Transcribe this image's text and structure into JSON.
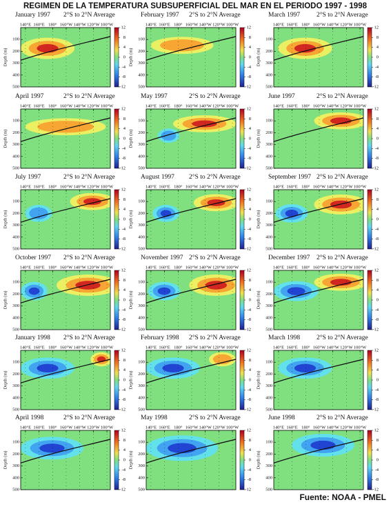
{
  "title": "REGIMEN DE LA TEMPERATURA SUBSUPERFICIAL DEL MAR EN EL PERIODO 1997 - 1998",
  "source": "Fuente: NOAA - PMEL",
  "subtitle": "2°S to 2°N Average",
  "y_label": "Depth (m)",
  "xlim": [
    133,
    265
  ],
  "xticks": [
    {
      "value": 140,
      "label": "140°E"
    },
    {
      "value": 160,
      "label": "160°E"
    },
    {
      "value": 180,
      "label": "180°"
    },
    {
      "value": 200,
      "label": "160°W"
    },
    {
      "value": 220,
      "label": "140°W"
    },
    {
      "value": 240,
      "label": "120°W"
    },
    {
      "value": 260,
      "label": "100°W"
    }
  ],
  "ylim": [
    0,
    500
  ],
  "yticks": [
    100,
    200,
    300,
    400,
    500
  ],
  "clim": [
    -12,
    12
  ],
  "cticks": [
    12,
    8,
    4,
    0,
    -4,
    -8,
    -12
  ],
  "panels": [
    "January 1997",
    "February 1997",
    "March 1997",
    "April 1997",
    "May 1997",
    "June 1997",
    "July 1997",
    "August 1997",
    "September 1997",
    "October 1997",
    "November 1997",
    "December 1997",
    "January 1998",
    "February 1998",
    "March 1998",
    "April 1998",
    "May 1998",
    "June 1998"
  ]
}
